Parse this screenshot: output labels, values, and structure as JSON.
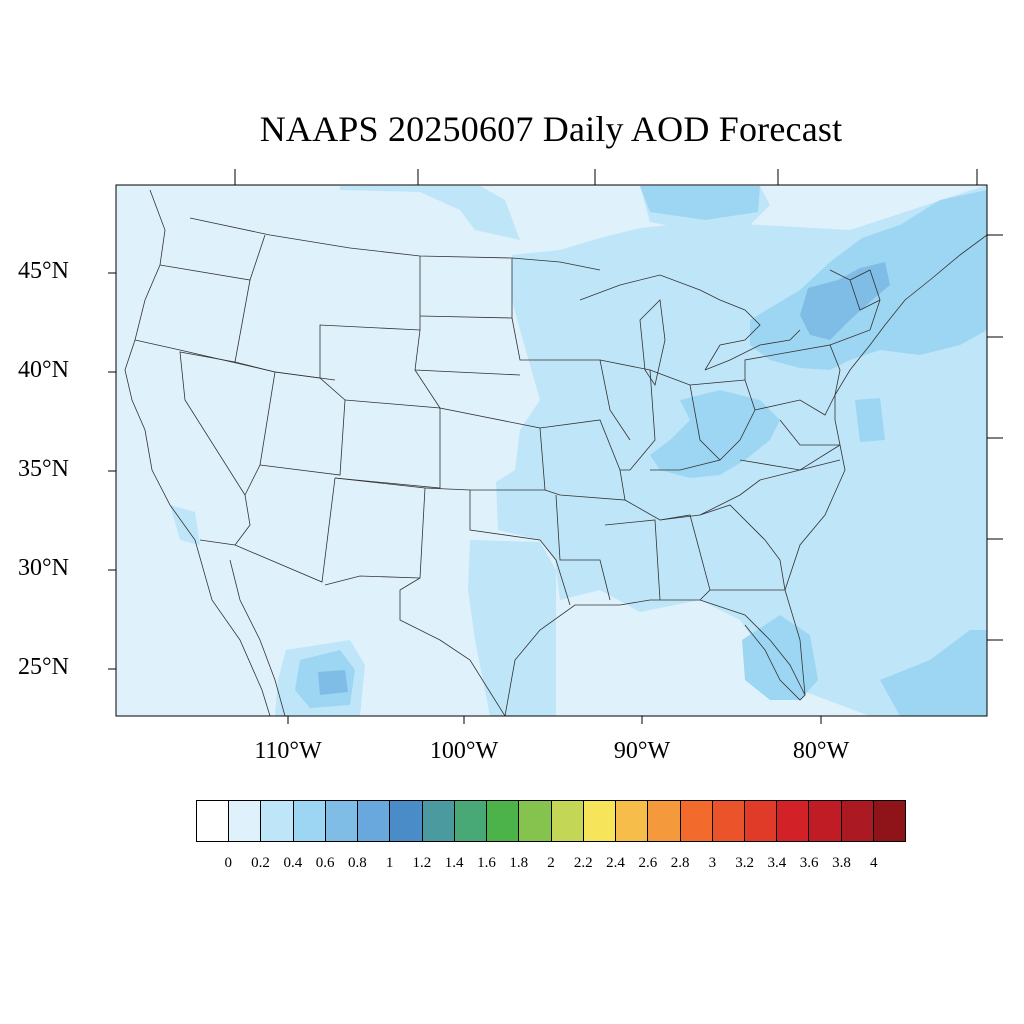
{
  "title": "NAAPS 20250607 Daily AOD Forecast",
  "lat_labels": [
    "45°N",
    "40°N",
    "35°N",
    "30°N",
    "25°N"
  ],
  "lon_labels": [
    "110°W",
    "100°W",
    "90°W",
    "80°W"
  ],
  "colorbar": {
    "colors": [
      "#ffffff",
      "#dff1fb",
      "#bfe5f8",
      "#9dd6f3",
      "#80bde6",
      "#69a8dc",
      "#4a8cc8",
      "#4a9aa0",
      "#48a876",
      "#4cb34a",
      "#86c24e",
      "#c4d655",
      "#f6e45a",
      "#f6bd4a",
      "#f59a3c",
      "#f36b2c",
      "#eb532a",
      "#e03a28",
      "#d22127",
      "#bf1c25",
      "#ab1a22",
      "#8f1419"
    ],
    "labels": [
      "0",
      "0.2",
      "0.4",
      "0.6",
      "0.8",
      "1",
      "1.2",
      "1.4",
      "1.6",
      "1.8",
      "2",
      "2.2",
      "2.4",
      "2.6",
      "2.8",
      "3",
      "3.2",
      "3.4",
      "3.6",
      "3.8",
      "4"
    ]
  },
  "aod_regions": {
    "background_class": "0-0.2",
    "elevated_0.2_0.4": [
      "Upper Midwest",
      "Great Lakes",
      "Midwest",
      "Southeast",
      "Atlantic Ocean",
      "Gulf of Mexico",
      "Western Canada border",
      "Northwest Mexico"
    ],
    "elevated_0.4_0.6": [
      "Northeast US",
      "Ohio Valley",
      "Appalachians",
      "Southern Canada",
      "Florida Peninsula",
      "Northwest Mexico"
    ],
    "elevated_0.6_0.8": [
      "New York",
      "Vermont",
      "Northwest Mexico small patch"
    ]
  }
}
